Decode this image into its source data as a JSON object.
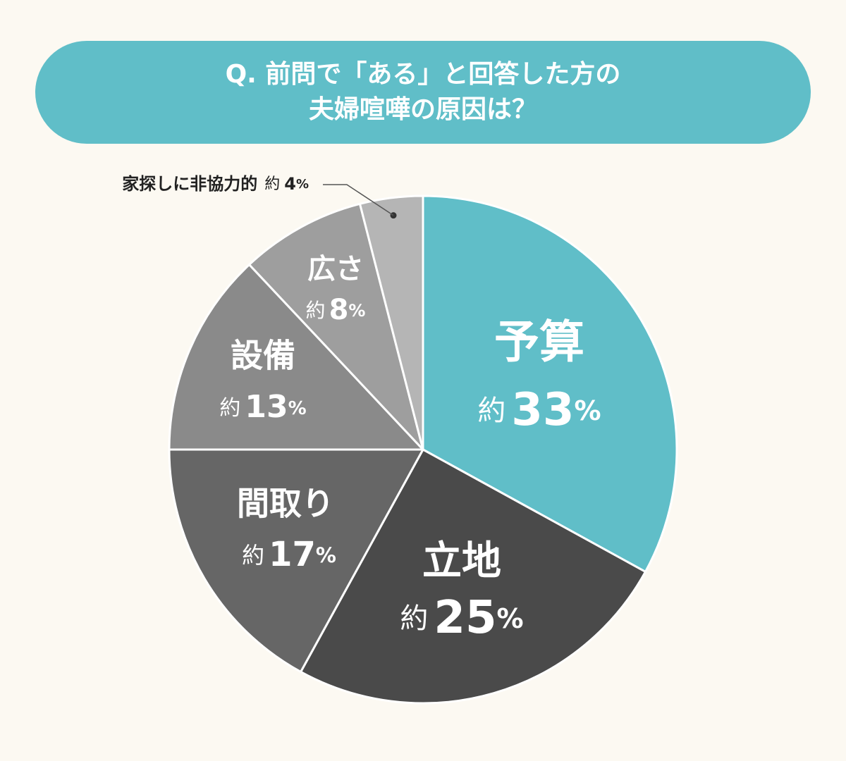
{
  "title": {
    "line1": "Q. 前問で「ある」と回答した方の",
    "line2": "夫婦喧嘩の原因は？"
  },
  "colors": {
    "background": "#fcf9f2",
    "accent": "#60bec8",
    "slice_colors": [
      "#60bec8",
      "#4a4a4a",
      "#666666",
      "#8a8a8a",
      "#9e9e9e",
      "#b5b5b5"
    ]
  },
  "chart_data": {
    "type": "pie",
    "title": "Q. 前問で「ある」と回答した方の 夫婦喧嘩の原因は？",
    "value_prefix": "約",
    "unit": "%",
    "slices": [
      {
        "label": "予算",
        "value": 33
      },
      {
        "label": "立地",
        "value": 25
      },
      {
        "label": "間取り",
        "value": 17
      },
      {
        "label": "設備",
        "value": 13
      },
      {
        "label": "広さ",
        "value": 8
      },
      {
        "label": "家探しに非協力的",
        "value": 4
      }
    ]
  }
}
